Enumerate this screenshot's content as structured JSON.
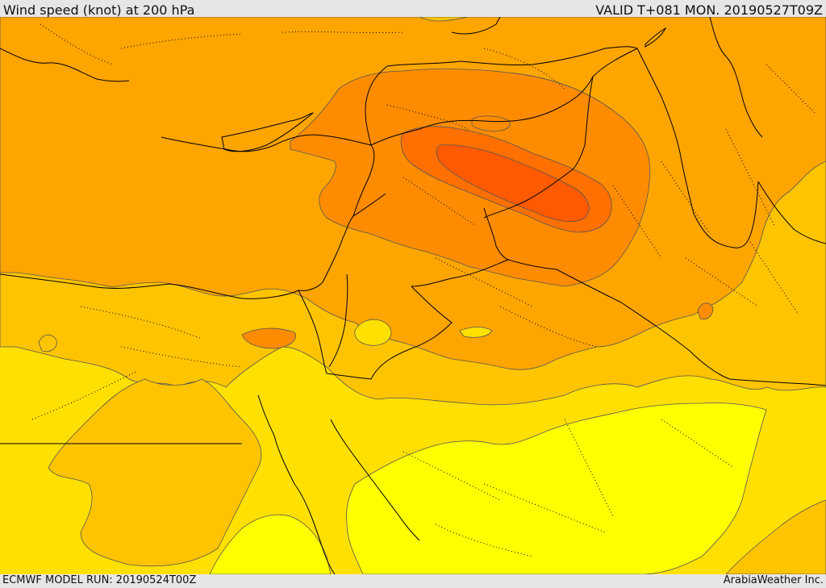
{
  "header": {
    "title": "Wind speed (knot) at 200 hPa",
    "valid": "VALID T+081 MON. 20190527T09Z"
  },
  "footer": {
    "model_run": "ECMWF MODEL RUN: 20190524T00Z",
    "credit": "ArabiaWeather Inc."
  },
  "map": {
    "colors": {
      "band_yellow": "#ffff00",
      "band_gold": "#ffe000",
      "band_amber": "#ffc400",
      "band_orange_light": "#ffa500",
      "band_orange": "#ff8c00",
      "band_orange_dark": "#ff7000",
      "band_red_orange": "#ff5a00",
      "contour_line": "#555555",
      "border_line": "#000000",
      "coast_line": "#000000"
    }
  }
}
